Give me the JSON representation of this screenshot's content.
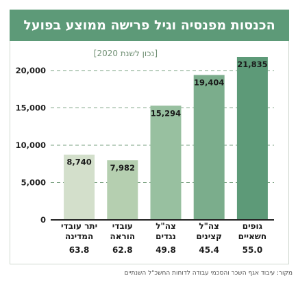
{
  "title": "הכנסות מפנסיה וגיל פרישה ממוצע בפועל",
  "subtitle": "[נכון לשנת 2020]",
  "source": "מקור: עיבוד אגף השכר והסכמי עבודה לדוחות החשכ\"ל השנתיים",
  "colors": {
    "header": "#5d9a78",
    "bars": [
      "#d3dfcb",
      "#b5cfb0",
      "#98c0a0",
      "#7bad8c",
      "#5d9a78"
    ]
  },
  "chart_data": {
    "type": "bar",
    "title": "הכנסות מפנסיה וגיל פרישה ממוצע בפועל",
    "subtitle": "[נכון לשנת 2020]",
    "categories": [
      [
        "יתר עובדי",
        "המדינה"
      ],
      [
        "עובדי",
        "הוראה"
      ],
      [
        "צה\"ל",
        "נגדים"
      ],
      [
        "צה\"ל",
        "קצינים"
      ],
      [
        "גופים",
        "חשאיים"
      ]
    ],
    "values": [
      8740,
      7982,
      15294,
      19404,
      21835
    ],
    "value_labels": [
      "8,740",
      "7,982",
      "15,294",
      "19,404",
      "21,835"
    ],
    "ages": [
      "63.8",
      "62.8",
      "49.8",
      "45.4",
      "55.0"
    ],
    "yticks": [
      "0",
      "5,000",
      "10,000",
      "15,000",
      "20,000"
    ],
    "ylim": [
      0,
      20000
    ],
    "grid": true
  }
}
